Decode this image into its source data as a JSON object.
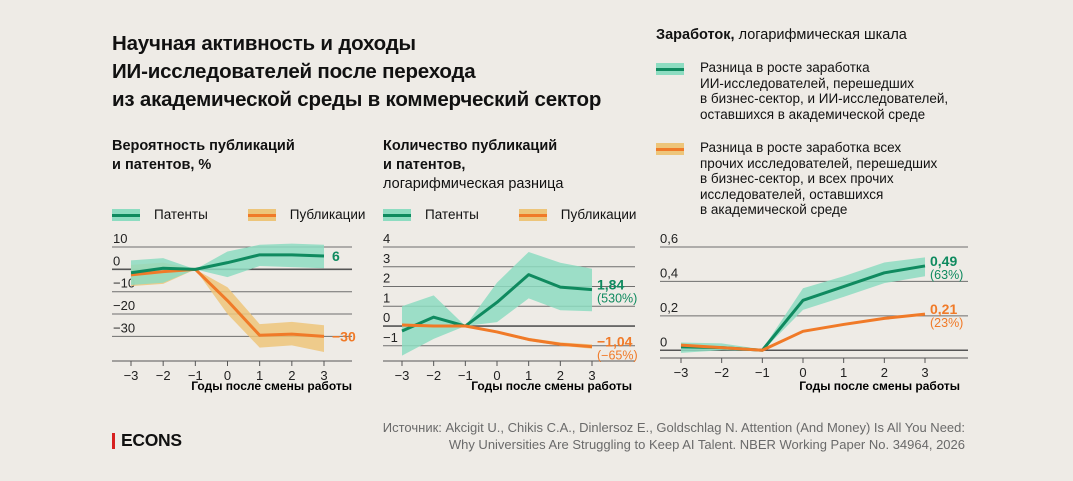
{
  "title_lines": [
    "Научная активность и доходы",
    "ИИ-исследователей после перехода",
    "из академической среды в коммерческий сектор"
  ],
  "colors": {
    "background": "#eeebe6",
    "green_line": "#0f8a5f",
    "green_band": "#8ddcc1",
    "orange_line": "#f07a28",
    "orange_band": "#edc57a",
    "grid": "#6e6e6e",
    "logo_bar": "#d7201f"
  },
  "legend_common": {
    "patents": "Патенты",
    "publications": "Публикации"
  },
  "earnings_legend": {
    "ai": "Разница в росте заработка ИИ-исследователей, перешедших в бизнес-сектор, и ИИ-исследователей, оставшихся в академической среде",
    "ai_lines": [
      "Разница в росте заработка",
      "ИИ-исследователей, перешедших",
      "в бизнес-сектор, и ИИ-исследователей,",
      "оставшихся в академической среде"
    ],
    "other_lines": [
      "Разница в росте заработка всех",
      "прочих исследователей, перешедших",
      "в бизнес-сектор, и всех прочих",
      "исследователей, оставшихся",
      "в академической среде"
    ]
  },
  "chart_data": [
    {
      "type": "line",
      "title": "Вероятность публикаций и патентов, %",
      "title_lines": [
        "Вероятность публикаций",
        "и патентов, %"
      ],
      "subtitle": "",
      "xlabel": "Годы после смены работы",
      "ylabel": "",
      "x": [
        -3,
        -2,
        -1,
        0,
        1,
        2,
        3
      ],
      "x_tick_labels": [
        "−3",
        "−2",
        "−1",
        "0",
        "1",
        "2",
        "3"
      ],
      "y_ticks": [
        10,
        0,
        -10,
        -20,
        -30
      ],
      "y_tick_labels": [
        "10",
        "0",
        "−10",
        "−20",
        "−30"
      ],
      "ylim": [
        -41,
        11
      ],
      "grid": true,
      "legend": "top-left",
      "series": [
        {
          "name": "Публикации",
          "color_key": "orange",
          "values": [
            -2.5,
            -1,
            0,
            -14,
            -29.5,
            -29,
            -30
          ],
          "upper": [
            2,
            3,
            0,
            -8,
            -24.5,
            -23.5,
            -25
          ],
          "lower": [
            -7.5,
            -6.5,
            0,
            -20,
            -35,
            -34,
            -37
          ],
          "end_label": "−30",
          "end_sub": ""
        },
        {
          "name": "Патенты",
          "color_key": "green",
          "values": [
            -1.5,
            0.5,
            0,
            3,
            6.5,
            6.5,
            6
          ],
          "upper": [
            4,
            5,
            0,
            8,
            11,
            11.5,
            11
          ],
          "lower": [
            -7,
            -6,
            0,
            -3.5,
            1.5,
            1,
            0.5
          ],
          "end_label": "6",
          "end_sub": ""
        }
      ]
    },
    {
      "type": "line",
      "title": "Количество публикаций и патентов, логарифмическая разница",
      "title_lines": [
        "Количество публикаций",
        "и патентов,"
      ],
      "subtitle": "логарифмическая разница",
      "xlabel": "Годы после смены работы",
      "ylabel": "",
      "x": [
        -3,
        -2,
        -1,
        0,
        1,
        2,
        3
      ],
      "x_tick_labels": [
        "−3",
        "−2",
        "−1",
        "0",
        "1",
        "2",
        "3"
      ],
      "y_ticks": [
        4,
        3,
        2,
        1,
        0,
        -1
      ],
      "y_tick_labels": [
        "4",
        "3",
        "2",
        "1",
        "0",
        "−1"
      ],
      "ylim": [
        -1.77,
        4
      ],
      "grid": true,
      "legend": "top-left",
      "series": [
        {
          "name": "Патенты",
          "color_key": "green",
          "values": [
            -0.25,
            0.45,
            0,
            1.2,
            2.6,
            1.97,
            1.84
          ],
          "upper": [
            1.0,
            1.55,
            0,
            2.2,
            3.75,
            3.2,
            2.9
          ],
          "lower": [
            -1.5,
            -0.65,
            0,
            0.2,
            1.4,
            0.8,
            0.75
          ],
          "end_label": "1,84",
          "end_sub": "(530%)"
        },
        {
          "name": "Публикации",
          "color_key": "orange",
          "values": [
            0.05,
            0.0,
            0,
            -0.3,
            -0.68,
            -0.92,
            -1.04
          ],
          "upper": [
            0.12,
            0.06,
            0,
            -0.24,
            -0.6,
            -0.83,
            -0.93
          ],
          "lower": [
            -0.02,
            -0.06,
            0,
            -0.36,
            -0.76,
            -1.0,
            -1.15
          ],
          "end_label": "−1,04",
          "end_sub": "(−65%)"
        }
      ]
    },
    {
      "type": "line",
      "title": "Заработок, логарифмическая шкала",
      "title_bold": "Заработок,",
      "title_rest": " логарифмическая шкала",
      "xlabel": "Годы после смены работы",
      "ylabel": "",
      "x": [
        -3,
        -2,
        -1,
        0,
        1,
        2,
        3
      ],
      "x_tick_labels": [
        "−3",
        "−2",
        "−1",
        "0",
        "1",
        "2",
        "3"
      ],
      "y_ticks": [
        0.6,
        0.4,
        0.2,
        0
      ],
      "y_tick_labels": [
        "0,6",
        "0,4",
        "0,2",
        "0"
      ],
      "ylim": [
        -0.045,
        0.6
      ],
      "grid": true,
      "legend": "top",
      "series": [
        {
          "name": "Разница в росте заработка ИИ-исследователей",
          "color_key": "green",
          "values": [
            0.02,
            0.015,
            0,
            0.29,
            0.37,
            0.45,
            0.49
          ],
          "upper": [
            0.045,
            0.04,
            0.005,
            0.36,
            0.43,
            0.51,
            0.54
          ],
          "lower": [
            -0.015,
            0.0,
            -0.005,
            0.235,
            0.31,
            0.39,
            0.43
          ],
          "end_label": "0,49",
          "end_sub": "(63%)"
        },
        {
          "name": "Разница в росте заработка всех прочих исследователей",
          "color_key": "orange",
          "values": [
            0.03,
            0.015,
            0,
            0.11,
            0.15,
            0.185,
            0.21
          ],
          "upper": null,
          "lower": null,
          "end_label": "0,21",
          "end_sub": "(23%)"
        }
      ]
    }
  ],
  "footer": {
    "logo": "ECONS",
    "source_lines": [
      "Источник: Akcigit U., Chikis C.A., Dinlersoz E., Goldschlag N. Attention (And Money) Is All You Need:",
      "Why Universities Are Struggling to Keep AI Talent. NBER Working Paper No. 34964, 2026"
    ]
  }
}
